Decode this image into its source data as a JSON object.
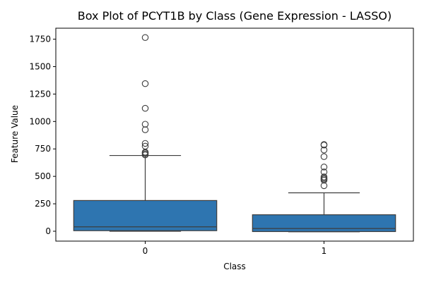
{
  "chart_data": {
    "type": "box",
    "title": "Box Plot of PCYT1B by Class (Gene Expression - LASSO)",
    "xlabel": "Class",
    "ylabel": "Feature Value",
    "categories": [
      "0",
      "1"
    ],
    "ylim": [
      -90,
      1850
    ],
    "yticks": [
      0,
      250,
      500,
      750,
      1000,
      1250,
      1500,
      1750
    ],
    "ytick_labels": [
      "0",
      "250",
      "500",
      "750",
      "1000",
      "1250",
      "1500",
      "1750"
    ],
    "box_color": "#2e75b0",
    "line_color": "#3d3d3d",
    "boxes": [
      {
        "category": "0",
        "min": 0,
        "q1": 5,
        "median": 40,
        "q3": 280,
        "whisker_high": 690,
        "outliers": [
          695,
          705,
          715,
          720,
          775,
          800,
          925,
          975,
          1120,
          1345,
          1765
        ]
      },
      {
        "category": "1",
        "min": -5,
        "q1": -3,
        "median": 25,
        "q3": 150,
        "whisker_high": 350,
        "outliers": [
          415,
          465,
          475,
          485,
          495,
          540,
          585,
          680,
          740,
          785,
          790
        ]
      }
    ]
  }
}
